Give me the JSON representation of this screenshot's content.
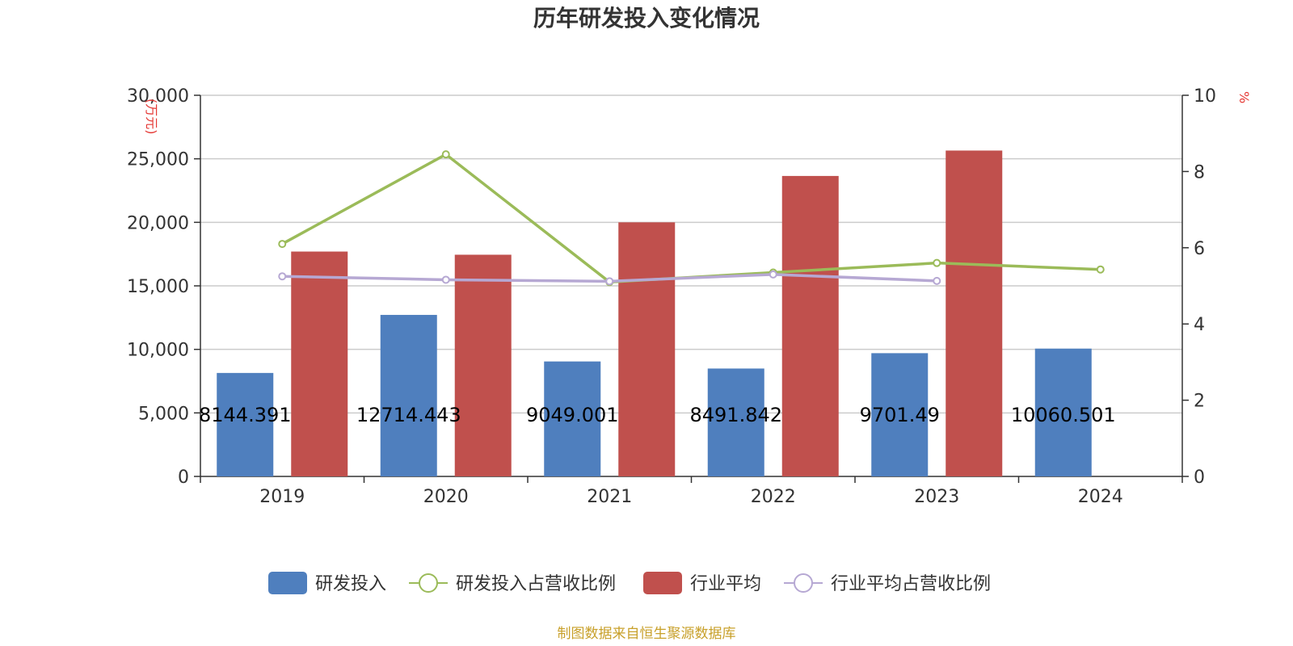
{
  "chart_data": {
    "type": "bar",
    "title": "历年研发投入变化情况",
    "categories": [
      "2019",
      "2020",
      "2021",
      "2022",
      "2023",
      "2024"
    ],
    "y_left": {
      "unit_label": "(万元)",
      "range": [
        0,
        30000
      ],
      "ticks": [
        "0",
        "5,000",
        "10,000",
        "15,000",
        "20,000",
        "25,000",
        "30,000"
      ]
    },
    "y_right": {
      "unit_label": "%",
      "range": [
        0,
        10
      ],
      "ticks": [
        "0",
        "2",
        "4",
        "6",
        "8",
        "10"
      ]
    },
    "grid": true,
    "legend_position": "bottom",
    "series": [
      {
        "name": "研发投入",
        "type": "bar",
        "axis": "left",
        "color": "#4f7fbe",
        "values": [
          8144.391,
          12714.443,
          9049.001,
          8491.842,
          9701.49,
          10060.501
        ],
        "labels": [
          "8144.391",
          "12714.443",
          "9049.001",
          "8491.842",
          "9701.49",
          "10060.501"
        ]
      },
      {
        "name": "研发投入占营收比例",
        "type": "line",
        "axis": "right",
        "color": "#9bbb59",
        "values": [
          6.1,
          8.45,
          5.1,
          5.35,
          5.6,
          5.43
        ]
      },
      {
        "name": "行业平均",
        "type": "bar",
        "axis": "left",
        "color": "#c0504d",
        "values": [
          17700,
          17450,
          20000,
          23650,
          25650,
          null
        ]
      },
      {
        "name": "行业平均占营收比例",
        "type": "line",
        "axis": "right",
        "color": "#b6a8d3",
        "values": [
          5.25,
          5.16,
          5.12,
          5.3,
          5.13,
          null
        ]
      }
    ]
  },
  "source": "制图数据来自恒生聚源数据库"
}
